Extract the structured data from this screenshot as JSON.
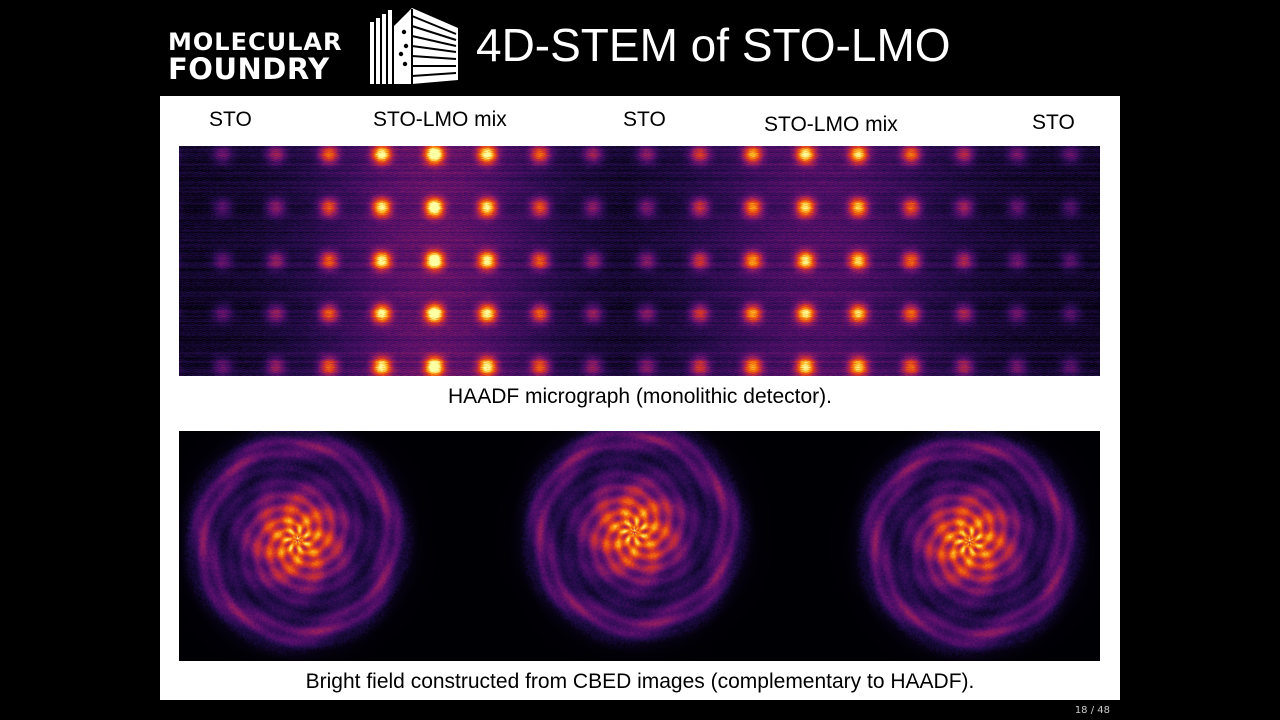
{
  "logo": {
    "line1": "MOLECULAR",
    "line2": "FOUNDRY"
  },
  "title": "4D-STEM of STO-LMO",
  "region_labels": [
    "STO",
    "STO-LMO mix",
    "STO",
    "STO-LMO mix",
    "STO"
  ],
  "haadf_caption": "HAADF micrograph (monolithic detector).",
  "bright_field_caption": "Bright field constructed from CBED images (complementary to HAADF).",
  "page_number": "18 / 48",
  "colors": {
    "background": "#000000",
    "panel": "#ffffff",
    "colormap": "inferno"
  }
}
